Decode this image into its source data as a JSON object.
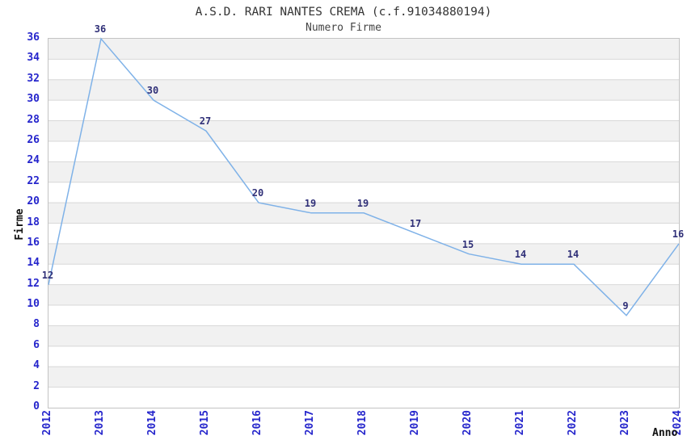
{
  "header": {
    "title": "A.S.D. RARI NANTES CREMA (c.f.91034880194)",
    "subtitle": "Numero Firme"
  },
  "chart_data": {
    "type": "line",
    "title": "A.S.D. RARI NANTES CREMA (c.f.91034880194)",
    "subtitle": "Numero Firme",
    "xlabel": "Anno",
    "ylabel": "Firme",
    "x": [
      2012,
      2013,
      2014,
      2015,
      2016,
      2017,
      2018,
      2019,
      2020,
      2021,
      2022,
      2023,
      2024
    ],
    "values": [
      12,
      36,
      30,
      27,
      20,
      19,
      19,
      17,
      15,
      14,
      14,
      9,
      16
    ],
    "ylim": [
      0,
      36
    ],
    "ytick_step": 2,
    "grid": "horizontal-bands",
    "legend": "none",
    "point_labels_shown": true,
    "colors": {
      "line": "#7fb2e8",
      "tick_label": "#2626cc",
      "data_label": "#303078",
      "band_gray": "#f1f1f1",
      "band_white": "#ffffff",
      "gridline": "#d8d8d8",
      "plot_border": "#c3c3c3",
      "title_text": "#333333"
    }
  }
}
